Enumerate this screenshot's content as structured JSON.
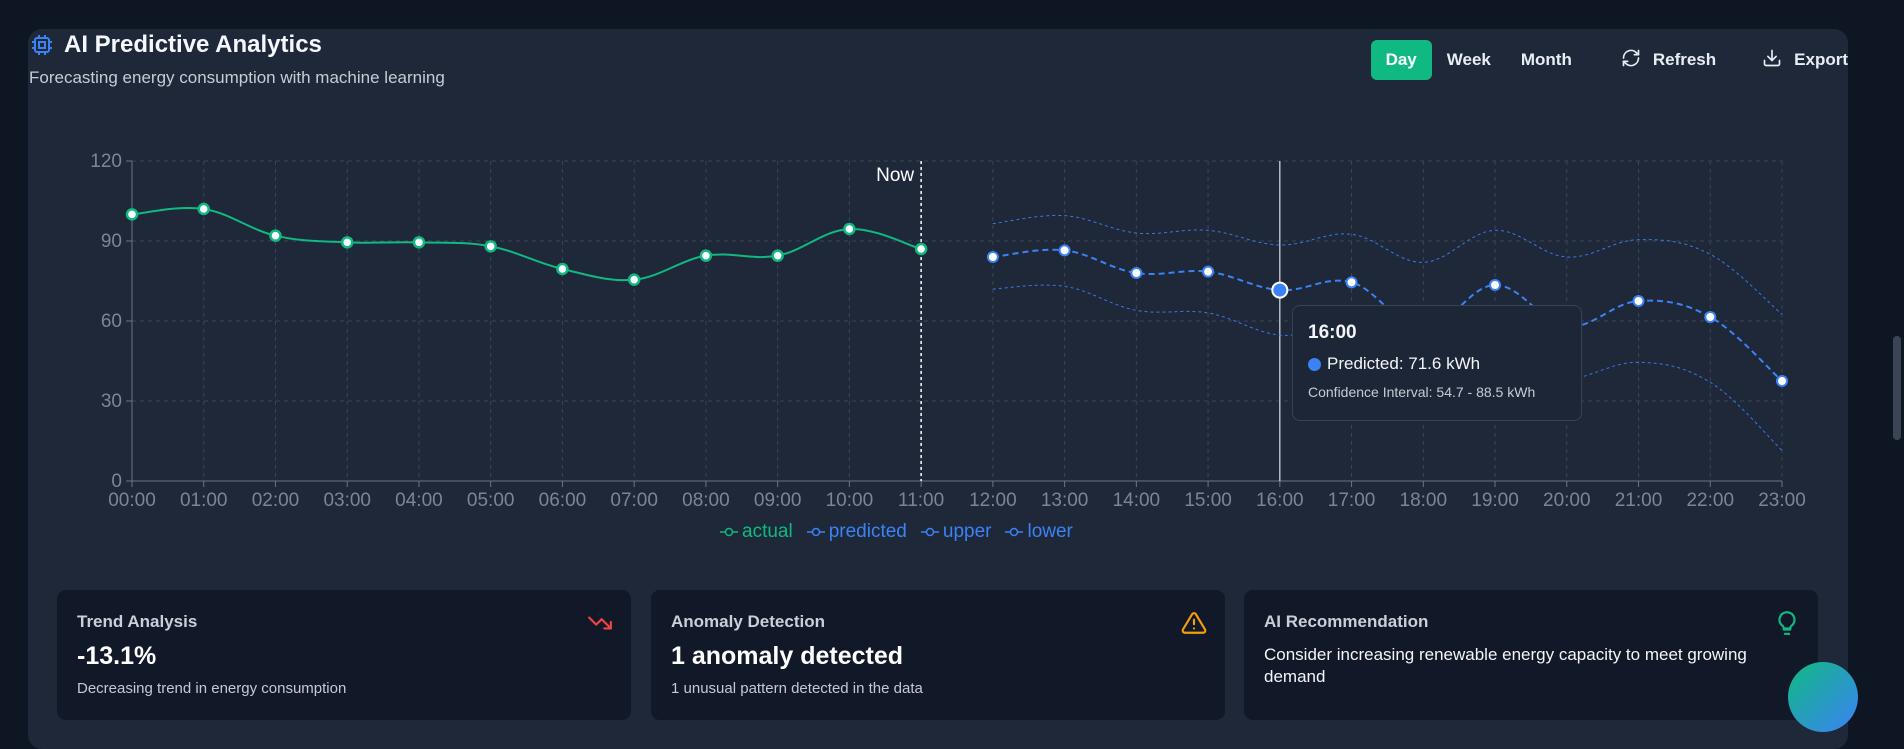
{
  "header": {
    "title": "AI Predictive Analytics",
    "subtitle": "Forecasting energy consumption with machine learning"
  },
  "controls": {
    "ranges": [
      "Day",
      "Week",
      "Month"
    ],
    "active_range": "Day",
    "refresh_label": "Refresh",
    "export_label": "Export"
  },
  "chart_data": {
    "type": "line",
    "x": [
      "00:00",
      "01:00",
      "02:00",
      "03:00",
      "04:00",
      "05:00",
      "06:00",
      "07:00",
      "08:00",
      "09:00",
      "10:00",
      "11:00",
      "12:00",
      "13:00",
      "14:00",
      "15:00",
      "16:00",
      "17:00",
      "18:00",
      "19:00",
      "20:00",
      "21:00",
      "22:00",
      "23:00"
    ],
    "ylim": [
      0,
      120
    ],
    "yticks": [
      0,
      30,
      60,
      90,
      120
    ],
    "grid": true,
    "legend_position": "bottom",
    "now_label": "Now",
    "now_x": "11:00",
    "series": [
      {
        "name": "actual",
        "color": "#10b981",
        "values": [
          100,
          102,
          92,
          89.5,
          89.5,
          88,
          79.5,
          75.5,
          84.5,
          84.5,
          94.5,
          87,
          null,
          null,
          null,
          null,
          null,
          null,
          null,
          null,
          null,
          null,
          null,
          null
        ]
      },
      {
        "name": "predicted",
        "color": "#3b82f6",
        "values": [
          null,
          null,
          null,
          null,
          null,
          null,
          null,
          null,
          null,
          null,
          null,
          null,
          84,
          86.5,
          78,
          78.5,
          71.6,
          74.5,
          57,
          73.5,
          58,
          67.5,
          61.5,
          37.5
        ]
      },
      {
        "name": "upper",
        "color": "#3b82f6",
        "values": [
          null,
          null,
          null,
          null,
          null,
          null,
          null,
          null,
          null,
          null,
          null,
          null,
          96.5,
          99.5,
          93,
          94,
          88.5,
          92.5,
          82,
          94,
          84,
          90.5,
          85,
          62.5
        ]
      },
      {
        "name": "lower",
        "color": "#3b82f6",
        "values": [
          null,
          null,
          null,
          null,
          null,
          null,
          null,
          null,
          null,
          null,
          null,
          null,
          72,
          73,
          64,
          63,
          54.7,
          57,
          33,
          39.5,
          38,
          44.5,
          37,
          11.5
        ]
      }
    ],
    "tooltip": {
      "x": "16:00",
      "time": "16:00",
      "predicted_text": "Predicted: 71.6 kWh",
      "ci_text": "Confidence Interval: 54.7 - 88.5 kWh"
    }
  },
  "cards": [
    {
      "label": "Trend Analysis",
      "value": "-13.1%",
      "desc": "Decreasing trend in energy consumption",
      "icon": "trending-down-icon",
      "icon_color": "#ef4444"
    },
    {
      "label": "Anomaly Detection",
      "value": "1 anomaly detected",
      "desc": "1 unusual pattern detected in the data",
      "icon": "warning-icon",
      "icon_color": "#f59e0b"
    },
    {
      "label": "AI Recommendation",
      "text": "Consider increasing renewable energy capacity to meet growing demand",
      "icon": "lightbulb-icon",
      "icon_color": "#10b981"
    }
  ]
}
